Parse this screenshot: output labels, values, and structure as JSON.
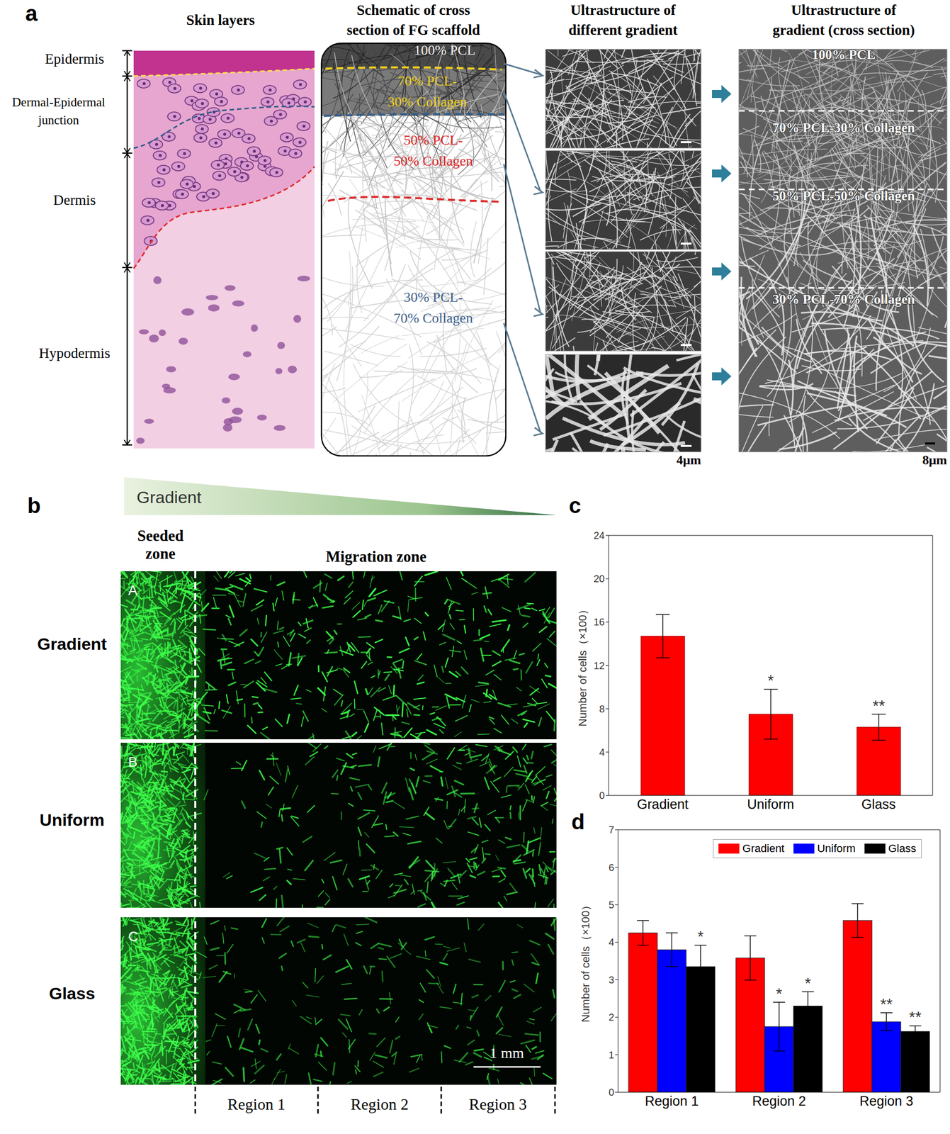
{
  "panels": {
    "a": {
      "letter": "a",
      "headers": [
        [
          "Skin layers"
        ],
        [
          "Schematic of cross",
          "section of FG scaffold"
        ],
        [
          "Ultrastructure of",
          "different gradient"
        ],
        [
          "Ultrastructure of",
          "gradient (cross section)"
        ]
      ],
      "skin_layers": [
        [
          "Epidermis"
        ],
        [
          "Dermal-Epidermal",
          "junction"
        ],
        [
          "Dermis"
        ],
        [
          "Hypodermis"
        ]
      ],
      "schematic_layers": [
        [
          "100% PCL"
        ],
        [
          "70% PCL-",
          "30% Collagen"
        ],
        [
          "50% PCL-",
          "50% Collagen"
        ],
        [
          "30% PCL-",
          "70% Collagen"
        ]
      ],
      "cross_section_layers": [
        "100% PCL",
        "70% PCL-30% Collagen",
        "50% PCL-50% Collagen",
        "30% PCL-70% Collagen"
      ],
      "scale_bars": [
        "4μm",
        "8μm"
      ]
    },
    "b": {
      "letter": "b",
      "gradient_label": "Gradient",
      "seeded_zone": [
        "Seeded",
        "zone"
      ],
      "migration_zone": "Migration zone",
      "rows": [
        {
          "letter": "A",
          "label": "Gradient"
        },
        {
          "letter": "B",
          "label": "Uniform"
        },
        {
          "letter": "C",
          "label": "Glass"
        }
      ],
      "regions": [
        "Region 1",
        "Region 2",
        "Region 3"
      ],
      "scale_bar": "1 mm"
    }
  },
  "chart_data": [
    {
      "panel": "c",
      "type": "bar",
      "categories": [
        "Gradient",
        "Uniform",
        "Glass"
      ],
      "values": [
        14.7,
        7.5,
        6.3
      ],
      "errors": [
        2.0,
        2.3,
        1.2
      ],
      "significance": [
        null,
        "*",
        "**"
      ],
      "color": "#ff0000",
      "y_label": "Number of cells（×100）",
      "ylim": [
        0,
        24
      ],
      "yticks": [
        0,
        4,
        8,
        12,
        16,
        20,
        24
      ],
      "grid": false
    },
    {
      "panel": "d",
      "type": "bar",
      "categories": [
        "Region 1",
        "Region 2",
        "Region 3"
      ],
      "series": [
        {
          "name": "Gradient",
          "color": "#ff0000",
          "values": [
            4.25,
            3.58,
            4.58
          ],
          "errors": [
            0.33,
            0.59,
            0.45
          ],
          "significance": [
            null,
            null,
            null
          ]
        },
        {
          "name": "Uniform",
          "color": "#0000ff",
          "values": [
            3.8,
            1.75,
            1.88
          ],
          "errors": [
            0.45,
            0.65,
            0.24
          ],
          "significance": [
            null,
            "*",
            "**"
          ]
        },
        {
          "name": "Glass",
          "color": "#000000",
          "values": [
            3.35,
            2.3,
            1.62
          ],
          "errors": [
            0.57,
            0.38,
            0.15
          ],
          "significance": [
            "*",
            "*",
            "**"
          ]
        }
      ],
      "y_label": "Number of cells（×100）",
      "ylim": [
        0,
        7
      ],
      "yticks": [
        0,
        1,
        2,
        3,
        4,
        5,
        6,
        7
      ],
      "legend": "top-right",
      "grid": false
    }
  ]
}
